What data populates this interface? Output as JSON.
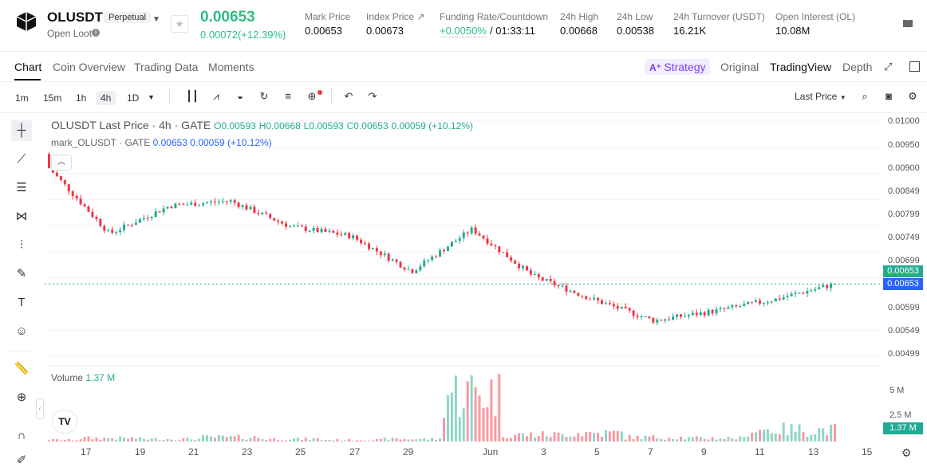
{
  "header": {
    "symbol": "OLUSDT",
    "badge": "Perpetual",
    "sub": "Open Loot",
    "price": "0.00653",
    "change": "0.00072(+12.39%)",
    "stats": [
      {
        "label": "Mark Price",
        "value": "0.00653"
      },
      {
        "label": "Index Price ↗",
        "value": "0.00673"
      },
      {
        "label": "Funding Rate/Countdown",
        "value_rate": "+0.0050%",
        "value_time": "/ 01:33:11"
      },
      {
        "label": "24h High",
        "value": "0.00668"
      },
      {
        "label": "24h Low",
        "value": "0.00538"
      },
      {
        "label": "24h Turnover (USDT)",
        "value": "16.21K"
      },
      {
        "label": "Open Interest (OL)",
        "value": "10.08M"
      }
    ]
  },
  "tabs": [
    "Chart",
    "Coin Overview",
    "Trading Data",
    "Moments"
  ],
  "strategy": "Strategy",
  "view_tabs": [
    "Original",
    "TradingView",
    "Depth"
  ],
  "timeframes": [
    "1m",
    "15m",
    "1h",
    "4h",
    "1D"
  ],
  "last_price_select": "Last Price",
  "legend": {
    "main": "OLUSDT Last Price · 4h · GATE",
    "o": "O0.00593",
    "h": "H0.00668",
    "l": "L0.00593",
    "c": "C0.00653",
    "chg": "0.00059 (+10.12%)",
    "mark": "mark_OLUSDT · GATE",
    "mark_val": "0.00653  0.00059  (+10.12%)"
  },
  "volume": {
    "label": "Volume",
    "value": "1.37 M"
  },
  "price_ticks": [
    "0.01000",
    "0.00950",
    "0.00900",
    "0.00849",
    "0.00799",
    "0.00749",
    "0.00699",
    "0.00599",
    "0.00549",
    "0.00499"
  ],
  "price_labels": {
    "last": "0.00653",
    "mark": "0.00653",
    "volume": "1.37 M"
  },
  "volume_ticks": [
    "5 M",
    "2.5 M"
  ],
  "x_ticks": [
    "17",
    "19",
    "21",
    "23",
    "25",
    "27",
    "29",
    "Jun",
    "3",
    "5",
    "7",
    "9",
    "11",
    "13",
    "15"
  ],
  "colors": {
    "up": "#22ab94",
    "down": "#f23645",
    "accent": "#2fbd85",
    "mark": "#2962ff"
  },
  "chart_data": {
    "type": "candlestick",
    "title": "OLUSDT Last Price · 4h · GATE",
    "ylim": [
      0.00499,
      0.01
    ],
    "x": [
      "17",
      "19",
      "21",
      "23",
      "25",
      "27",
      "29",
      "Jun",
      "3",
      "5",
      "7",
      "9",
      "11",
      "13"
    ],
    "close": [
      0.009,
      0.0076,
      0.0082,
      0.0083,
      0.00775,
      0.00755,
      0.0068,
      0.0077,
      0.0067,
      0.0062,
      0.00575,
      0.00595,
      0.0062,
      0.00653
    ],
    "volume": [
      0.2,
      0.4,
      0.3,
      0.5,
      0.3,
      0.2,
      0.3,
      5.8,
      0.8,
      1.0,
      0.5,
      0.4,
      1.4,
      1.37
    ]
  }
}
